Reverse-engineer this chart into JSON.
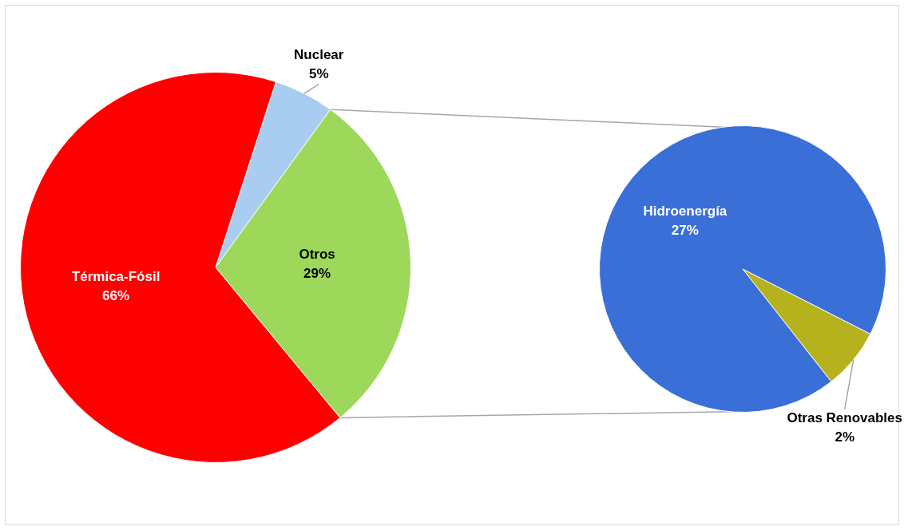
{
  "chart_data": [
    {
      "type": "pie",
      "categories": [
        "Nuclear",
        "Otros",
        "Térmica-Fósil"
      ],
      "values": [
        5,
        29,
        66
      ],
      "value_labels": [
        "5%",
        "29%",
        "66%"
      ],
      "colors": [
        "#a9cdf0",
        "#9dd85a",
        "#ff0000"
      ],
      "legend": false
    },
    {
      "type": "pie",
      "categories": [
        "Otras Renovables",
        "Hidroenergía"
      ],
      "values": [
        2,
        27
      ],
      "value_labels": [
        "2%",
        "27%"
      ],
      "colors": [
        "#b5b21e",
        "#3a6fd8"
      ],
      "legend": false
    }
  ]
}
